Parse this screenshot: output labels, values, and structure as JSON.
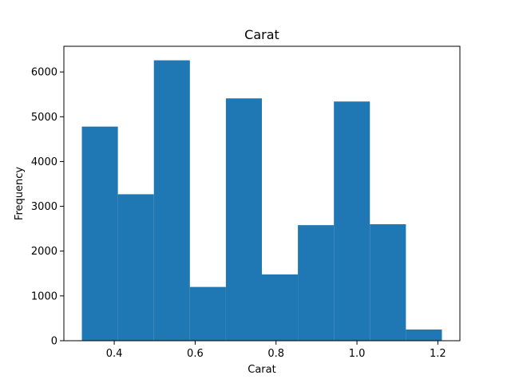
{
  "chart_data": {
    "type": "bar",
    "subtype": "histogram",
    "title": "Carat",
    "xlabel": "Carat",
    "ylabel": "Frequency",
    "bin_edges": [
      0.32,
      0.409,
      0.498,
      0.587,
      0.676,
      0.765,
      0.854,
      0.943,
      1.032,
      1.121,
      1.21
    ],
    "values": [
      4780,
      3270,
      6260,
      1200,
      5410,
      1480,
      2580,
      5340,
      2600,
      250
    ],
    "xlim": [
      0.2755,
      1.2545
    ],
    "ylim": [
      0,
      6573
    ],
    "xticks": [
      "0.4",
      "0.6",
      "0.8",
      "1.0",
      "1.2"
    ],
    "xtick_values": [
      0.4,
      0.6,
      0.8,
      1.0,
      1.2
    ],
    "yticks": [
      "0",
      "1000",
      "2000",
      "3000",
      "4000",
      "5000",
      "6000"
    ],
    "ytick_values": [
      0,
      1000,
      2000,
      3000,
      4000,
      5000,
      6000
    ],
    "bar_color": "#1f77b4",
    "grid": false,
    "legend": "none"
  }
}
